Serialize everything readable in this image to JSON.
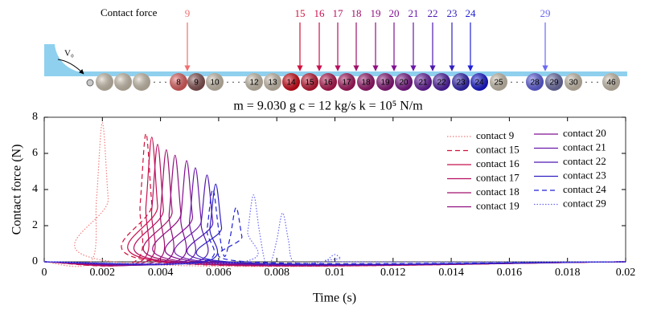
{
  "diagram": {
    "caption": "Contact force",
    "velocity_label": "V₀",
    "arrows": [
      {
        "label": "9",
        "color": "#f07070"
      },
      {
        "label": "15",
        "color": "#d0103a"
      },
      {
        "label": "16",
        "color": "#c8104f"
      },
      {
        "label": "17",
        "color": "#b80f60"
      },
      {
        "label": "18",
        "color": "#a0106a"
      },
      {
        "label": "19",
        "color": "#901080"
      },
      {
        "label": "20",
        "color": "#801090"
      },
      {
        "label": "21",
        "color": "#6a18a8"
      },
      {
        "label": "22",
        "color": "#5018b0"
      },
      {
        "label": "23",
        "color": "#3020c0"
      },
      {
        "label": "24",
        "color": "#2020d8"
      },
      {
        "label": "29",
        "color": "#6a6af0"
      }
    ],
    "balls": [
      {
        "label": "8",
        "color": "#f06060"
      },
      {
        "label": "9",
        "color": "#8a5050"
      },
      {
        "label": "10",
        "color": "#d8ccb8"
      },
      {
        "label": "12",
        "color": "#d8ccb8"
      },
      {
        "label": "13",
        "color": "#d8ccb8"
      },
      {
        "label": "14",
        "color": "#e00010"
      },
      {
        "label": "15",
        "color": "#d01030"
      },
      {
        "label": "16",
        "color": "#c01050"
      },
      {
        "label": "17",
        "color": "#b01060"
      },
      {
        "label": "18",
        "color": "#a01070"
      },
      {
        "label": "19",
        "color": "#901080"
      },
      {
        "label": "20",
        "color": "#801090"
      },
      {
        "label": "21",
        "color": "#6a18a8"
      },
      {
        "label": "22",
        "color": "#5018b0"
      },
      {
        "label": "23",
        "color": "#3020c0"
      },
      {
        "label": "24",
        "color": "#1010e0"
      },
      {
        "label": "25",
        "color": "#d8ccb8"
      },
      {
        "label": "28",
        "color": "#6060f0"
      },
      {
        "label": "29",
        "color": "#7070b0"
      },
      {
        "label": "30",
        "color": "#d8ccb8"
      },
      {
        "label": "46",
        "color": "#d8ccb8"
      }
    ]
  },
  "chart_data": {
    "type": "line",
    "title": "m = 9.030 g   c = 12  kg/s   k = 10⁵ N/m",
    "x_label": "Time (s)",
    "y_label": "Contact force (N)",
    "xlim": [
      0,
      0.02
    ],
    "ylim": [
      0,
      8
    ],
    "xticks": [
      0,
      0.002,
      0.004,
      0.006,
      0.008,
      0.01,
      0.012,
      0.014,
      0.016,
      0.018,
      0.02
    ],
    "yticks": [
      0,
      2,
      4,
      6,
      8
    ],
    "series": [
      {
        "name": "contact 9",
        "color": "#f08080",
        "style": "dotted",
        "x": [
          0,
          0.0016,
          0.0018,
          0.002,
          0.0022,
          0.0024,
          0.02
        ],
        "values": [
          0,
          0,
          3.5,
          7.7,
          3.5,
          0,
          0
        ]
      },
      {
        "name": "contact 15",
        "color": "#d0103a",
        "style": "dashed",
        "x": [
          0,
          0.0031,
          0.0033,
          0.0035,
          0.0037,
          0.0039,
          0.02
        ],
        "values": [
          0,
          0,
          3.2,
          7.1,
          3.2,
          0,
          0
        ]
      },
      {
        "name": "contact 16",
        "color": "#c8104f",
        "style": "solid",
        "x": [
          0,
          0.0033,
          0.0035,
          0.0037,
          0.0039,
          0.0041,
          0.02
        ],
        "values": [
          0,
          0,
          3.1,
          6.9,
          3.1,
          0,
          0
        ]
      },
      {
        "name": "contact 17",
        "color": "#b80f60",
        "style": "solid",
        "x": [
          0,
          0.0035,
          0.0037,
          0.0039,
          0.0041,
          0.0043,
          0.02
        ],
        "values": [
          0,
          0,
          2.9,
          6.5,
          2.9,
          0,
          0
        ]
      },
      {
        "name": "contact 18",
        "color": "#a0106a",
        "style": "solid",
        "x": [
          0,
          0.0038,
          0.004,
          0.0042,
          0.0044,
          0.0046,
          0.02
        ],
        "values": [
          0,
          0,
          2.8,
          6.2,
          2.8,
          0,
          0
        ]
      },
      {
        "name": "contact 19",
        "color": "#901080",
        "style": "solid",
        "x": [
          0,
          0.0041,
          0.0043,
          0.0045,
          0.0047,
          0.0049,
          0.02
        ],
        "values": [
          0,
          0,
          2.7,
          5.9,
          2.7,
          0,
          0
        ]
      },
      {
        "name": "contact 20",
        "color": "#801090",
        "style": "solid",
        "x": [
          0,
          0.0045,
          0.0047,
          0.0049,
          0.0051,
          0.0053,
          0.02
        ],
        "values": [
          0,
          0,
          2.5,
          5.6,
          2.5,
          0,
          0
        ]
      },
      {
        "name": "contact 21",
        "color": "#6a18a8",
        "style": "solid",
        "x": [
          0,
          0.0048,
          0.005,
          0.0052,
          0.0054,
          0.0056,
          0.02
        ],
        "values": [
          0,
          0,
          2.3,
          5.2,
          2.3,
          0,
          0
        ]
      },
      {
        "name": "contact 22",
        "color": "#5018b0",
        "style": "solid",
        "x": [
          0,
          0.0052,
          0.0054,
          0.0056,
          0.0058,
          0.006,
          0.02
        ],
        "values": [
          0,
          0,
          2.2,
          4.8,
          2.2,
          0,
          0
        ]
      },
      {
        "name": "contact 23",
        "color": "#3020c0",
        "style": "solid",
        "x": [
          0,
          0.0055,
          0.0057,
          0.0059,
          0.0061,
          0.0063,
          0.02
        ],
        "values": [
          0,
          0,
          1.9,
          4.3,
          1.9,
          0,
          0
        ]
      },
      {
        "name": "contact 24",
        "color": "#2020d8",
        "style": "dashed",
        "x": [
          0,
          0.0054,
          0.0056,
          0.0058,
          0.006,
          0.0062,
          0.0064,
          0.0066,
          0.0068,
          0.007,
          0.02
        ],
        "values": [
          0,
          0,
          1.8,
          4.0,
          1.8,
          0.3,
          1.4,
          3.0,
          1.4,
          0,
          0
        ]
      },
      {
        "name": "contact 29",
        "color": "#6a6af0",
        "style": "dotted",
        "x": [
          0,
          0.0068,
          0.007,
          0.0072,
          0.0074,
          0.0076,
          0.0078,
          0.008,
          0.0082,
          0.0084,
          0.0086,
          0.0096,
          0.0098,
          0.01,
          0.0102,
          0.0104,
          0.02
        ],
        "values": [
          0,
          0,
          1.7,
          3.7,
          1.7,
          0,
          0,
          1.2,
          2.7,
          1.2,
          0,
          0,
          0.2,
          0.4,
          0.2,
          0,
          0
        ]
      }
    ]
  }
}
